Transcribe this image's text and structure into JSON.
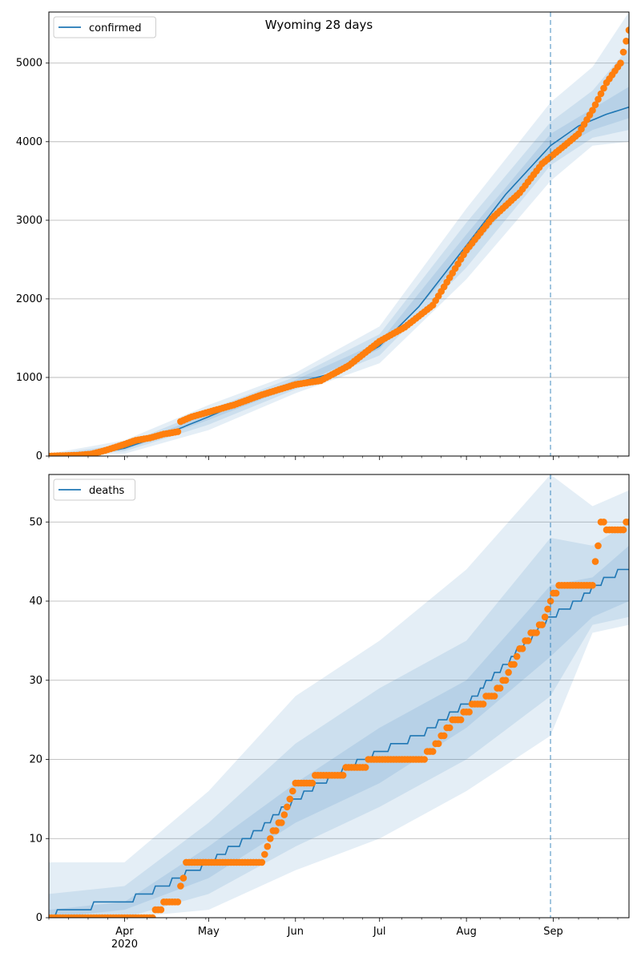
{
  "title": "Wyoming 28 days",
  "colors": {
    "model": "#1f77b4",
    "observed": "#ff7f0e",
    "band": "#1f77b4",
    "grid": "#b0b0b0",
    "vline": "#1f77b4"
  },
  "x_axis": {
    "labels": [
      {
        "date": "2020-04-01",
        "label": "Apr",
        "sub": "2020"
      },
      {
        "date": "2020-05-01",
        "label": "May"
      },
      {
        "date": "2020-06-01",
        "label": "Jun"
      },
      {
        "date": "2020-07-01",
        "label": "Jul"
      },
      {
        "date": "2020-08-01",
        "label": "Aug"
      },
      {
        "date": "2020-09-01",
        "label": "Sep"
      }
    ],
    "range": [
      "2020-03-05",
      "2020-09-28"
    ],
    "forecast_start": "2020-08-31"
  },
  "chart_data": [
    {
      "type": "line",
      "title": "Wyoming 28 days",
      "legend": {
        "entries": [
          "confirmed"
        ],
        "placement": "top-left"
      },
      "xlabel": "",
      "ylabel": "",
      "ylim": [
        0,
        5650
      ],
      "yticks": [
        0,
        1000,
        2000,
        3000,
        4000,
        5000
      ],
      "grid": "y",
      "model_series": {
        "name": "confirmed",
        "x": [
          "2020-03-05",
          "2020-03-20",
          "2020-04-01",
          "2020-04-15",
          "2020-05-01",
          "2020-05-15",
          "2020-06-01",
          "2020-06-15",
          "2020-07-01",
          "2020-07-15",
          "2020-08-01",
          "2020-08-15",
          "2020-08-31",
          "2020-09-10",
          "2020-09-20",
          "2020-09-28"
        ],
        "values": [
          0,
          10,
          100,
          270,
          500,
          720,
          930,
          1060,
          1400,
          1900,
          2680,
          3330,
          3950,
          4200,
          4350,
          4440
        ]
      },
      "bands": [
        {
          "x": [
            "2020-03-05",
            "2020-04-01",
            "2020-05-01",
            "2020-06-01",
            "2020-07-01",
            "2020-08-01",
            "2020-08-31",
            "2020-09-15",
            "2020-09-28"
          ],
          "lower": [
            0,
            30,
            330,
            800,
            1180,
            2250,
            3500,
            3950,
            4000
          ],
          "upper": [
            30,
            200,
            650,
            1060,
            1650,
            3150,
            4500,
            4950,
            5650
          ]
        },
        {
          "x": [
            "2020-03-05",
            "2020-04-01",
            "2020-05-01",
            "2020-06-01",
            "2020-07-01",
            "2020-08-01",
            "2020-08-31",
            "2020-09-15",
            "2020-09-28"
          ],
          "lower": [
            0,
            60,
            400,
            850,
            1280,
            2400,
            3700,
            4050,
            4150
          ],
          "upper": [
            20,
            150,
            590,
            1010,
            1550,
            2970,
            4250,
            4650,
            5200
          ]
        },
        {
          "x": [
            "2020-03-05",
            "2020-04-01",
            "2020-05-01",
            "2020-06-01",
            "2020-07-01",
            "2020-08-01",
            "2020-08-31",
            "2020-09-15",
            "2020-09-28"
          ],
          "lower": [
            0,
            80,
            460,
            890,
            1360,
            2550,
            3850,
            4150,
            4300
          ],
          "upper": [
            10,
            120,
            540,
            970,
            1450,
            2820,
            4100,
            4420,
            4700
          ]
        }
      ],
      "observed": {
        "x": [
          "2020-03-05",
          "2020-03-15",
          "2020-03-20",
          "2020-03-25",
          "2020-04-01",
          "2020-04-05",
          "2020-04-10",
          "2020-04-15",
          "2020-04-20",
          "2020-04-21",
          "2020-04-25",
          "2020-05-01",
          "2020-05-10",
          "2020-05-20",
          "2020-06-01",
          "2020-06-10",
          "2020-06-20",
          "2020-07-01",
          "2020-07-10",
          "2020-07-20",
          "2020-08-01",
          "2020-08-10",
          "2020-08-20",
          "2020-08-28",
          "2020-09-05",
          "2020-09-10",
          "2020-09-15",
          "2020-09-20",
          "2020-09-25",
          "2020-09-28"
        ],
        "values": [
          0,
          10,
          25,
          70,
          150,
          200,
          230,
          280,
          310,
          440,
          500,
          560,
          650,
          780,
          910,
          960,
          1150,
          1460,
          1640,
          1920,
          2620,
          3020,
          3350,
          3720,
          3950,
          4100,
          4400,
          4750,
          5000,
          5420
        ]
      }
    },
    {
      "type": "line",
      "legend": {
        "entries": [
          "deaths"
        ],
        "placement": "top-left"
      },
      "xlabel": "",
      "ylabel": "",
      "ylim": [
        0,
        56
      ],
      "yticks": [
        0,
        10,
        20,
        30,
        40,
        50
      ],
      "grid": "y",
      "model_series": {
        "name": "deaths",
        "x": [
          "2020-03-05",
          "2020-03-10",
          "2020-04-01",
          "2020-04-15",
          "2020-05-01",
          "2020-05-15",
          "2020-06-01",
          "2020-06-15",
          "2020-07-01",
          "2020-07-15",
          "2020-08-01",
          "2020-08-15",
          "2020-08-31",
          "2020-09-10",
          "2020-09-20",
          "2020-09-28"
        ],
        "values": [
          0,
          1,
          2,
          4,
          7,
          10,
          15,
          18,
          21,
          23,
          27,
          32,
          38,
          40,
          43,
          44
        ]
      },
      "bands": [
        {
          "x": [
            "2020-03-05",
            "2020-04-01",
            "2020-05-01",
            "2020-06-01",
            "2020-07-01",
            "2020-08-01",
            "2020-08-31",
            "2020-09-15",
            "2020-09-28"
          ],
          "lower": [
            0,
            0,
            1,
            6,
            10,
            16,
            23,
            36,
            37
          ],
          "upper": [
            7,
            7,
            16,
            28,
            35,
            44,
            56,
            52,
            54
          ]
        },
        {
          "x": [
            "2020-03-05",
            "2020-04-01",
            "2020-05-01",
            "2020-06-01",
            "2020-07-01",
            "2020-08-01",
            "2020-08-31",
            "2020-09-15",
            "2020-09-28"
          ],
          "lower": [
            0,
            0,
            3,
            9,
            14,
            20,
            28,
            37,
            38
          ],
          "upper": [
            3,
            4,
            12,
            22,
            29,
            35,
            48,
            47,
            50
          ]
        },
        {
          "x": [
            "2020-03-05",
            "2020-04-01",
            "2020-05-01",
            "2020-06-01",
            "2020-07-01",
            "2020-08-01",
            "2020-08-31",
            "2020-09-15",
            "2020-09-28"
          ],
          "lower": [
            0,
            1,
            5,
            12,
            17,
            24,
            33,
            38,
            40
          ],
          "upper": [
            1,
            2,
            9,
            17,
            24,
            30,
            42,
            43,
            47
          ]
        }
      ],
      "observed": {
        "x": [
          "2020-03-05",
          "2020-04-10",
          "2020-04-13",
          "2020-04-16",
          "2020-04-20",
          "2020-04-23",
          "2020-05-20",
          "2020-05-23",
          "2020-05-27",
          "2020-06-01",
          "2020-06-15",
          "2020-07-01",
          "2020-07-15",
          "2020-07-20",
          "2020-07-25",
          "2020-08-01",
          "2020-08-05",
          "2020-08-10",
          "2020-08-15",
          "2020-08-20",
          "2020-08-28",
          "2020-09-01",
          "2020-09-05",
          "2020-09-15",
          "2020-09-18",
          "2020-09-20",
          "2020-09-25",
          "2020-09-28"
        ],
        "values": [
          0,
          0,
          1,
          2,
          2,
          7,
          7,
          10,
          12,
          17,
          18,
          20,
          20,
          21,
          24,
          26,
          27,
          28,
          30,
          34,
          37,
          41,
          42,
          42,
          50,
          49,
          49,
          50
        ]
      }
    }
  ]
}
